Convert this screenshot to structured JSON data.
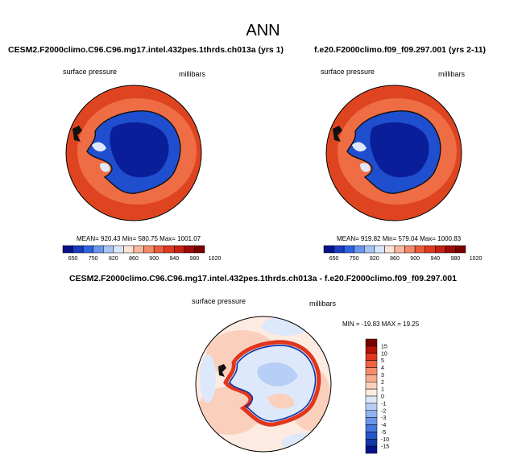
{
  "page": {
    "title": "ANN"
  },
  "panels": [
    {
      "case": "CESM2.F2000climo.C96.C96.mg17.intel.432pes.1thrds.ch013a (yrs 1)",
      "variable": "surface pressure",
      "units": "millibars",
      "stats": "MEAN= 920.43  Min= 580.75  Max= 1001.07"
    },
    {
      "case": "f.e20.F2000climo.f09_f09.297.001 (yrs 2-11)",
      "variable": "surface pressure",
      "units": "millibars",
      "stats": "MEAN= 919.82  Min= 579.04  Max= 1000.83"
    }
  ],
  "diff_panel": {
    "case": "CESM2.F2000climo.C96.C96.mg17.intel.432pes.1thrds.ch013a - f.e20.F2000climo.f09_f09.297.001",
    "variable": "surface pressure",
    "units": "millibars",
    "stats": "MIN = -19.83 MAX =  19.25"
  },
  "colorbar": {
    "labels": [
      "650",
      "750",
      "820",
      "860",
      "900",
      "940",
      "980",
      "1020"
    ],
    "colors": [
      "#08128a",
      "#1a3bbf",
      "#2f62de",
      "#6a95ee",
      "#a7c3f4",
      "#d9e6fa",
      "#fde3d6",
      "#f8b79d",
      "#f28a69",
      "#ea5b3c",
      "#df3a20",
      "#c52113",
      "#9e0a06",
      "#7a0000"
    ]
  },
  "diff_colorbar": {
    "labels": [
      "15",
      "10",
      "5",
      "4",
      "3",
      "2",
      "1",
      "0",
      "-1",
      "-2",
      "-3",
      "-4",
      "-5",
      "-10",
      "-15"
    ],
    "colors": [
      "#7a0000",
      "#b51208",
      "#e1361c",
      "#ee6440",
      "#f48c6a",
      "#f7ad90",
      "#fad0bd",
      "#fdebe2",
      "#dde9fb",
      "#b7cff6",
      "#8fb2ef",
      "#6a95ea",
      "#4676de",
      "#2655c9",
      "#1337a6",
      "#08128a"
    ]
  }
}
